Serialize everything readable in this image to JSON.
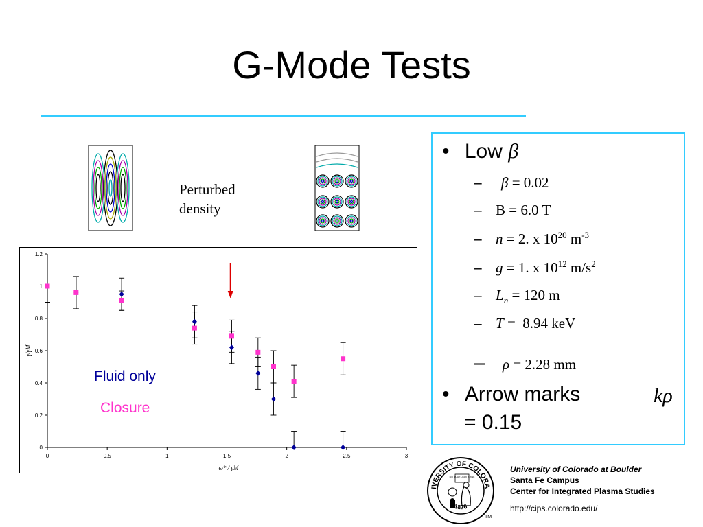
{
  "slide": {
    "title": "G-Mode Tests",
    "accent_color": "#33ccff"
  },
  "perturbed": {
    "line1": "Perturbed",
    "line2": "density"
  },
  "legend": {
    "fluid_only": "Fluid only",
    "fluid_color": "#000099",
    "closure": "Closure",
    "closure_color": "#ff33cc"
  },
  "bullets": {
    "low_beta": {
      "label": "Low",
      "symbol": "β"
    },
    "beta": {
      "symbol": "β",
      "value": "= 0.02"
    },
    "B": {
      "text": "B = 6.0 T"
    },
    "n": {
      "var": "n",
      "pre": " = 2. x 10",
      "exp": "20",
      "unit": " m",
      "unit_exp": "-3"
    },
    "g": {
      "var": "g",
      "pre": " = 1. x 10",
      "exp": "12",
      "unit": " m/s",
      "unit_exp": "2"
    },
    "Ln": {
      "var": "L",
      "sub": "n",
      "value": " = 120 m"
    },
    "T": {
      "var": "T",
      "value": " =  8.94 keV"
    },
    "rho": {
      "symbol": "ρ",
      "value": "= 2.28 mm"
    },
    "arrow": {
      "line1": "Arrow marks",
      "k": "k",
      "rho": "ρ",
      "line2": "= 0.15"
    }
  },
  "affiliation": {
    "line1": "University of Colorado at Boulder",
    "line2": "Santa Fe Campus",
    "line3": "Center for Integrated Plasma Studies",
    "url": "http://cips.colorado.edu/"
  },
  "seal": {
    "top_text": "UNIVERSITY OF COLORADO",
    "year": "1876",
    "motto": "LET YOUR LIGHT SHINE",
    "tm": "TM"
  },
  "chart_data": {
    "type": "scatter",
    "xlim": [
      0,
      3
    ],
    "ylim": [
      0,
      1.2
    ],
    "x_ticks": [
      "0",
      "0.5",
      "1",
      "1.5",
      "2",
      "2.5",
      "3"
    ],
    "y_ticks": [
      "0",
      "0.2",
      "0.4",
      "0.6",
      "0.8",
      "1",
      "1.2"
    ],
    "xlabel": "ω* / γM",
    "ylabel": "γ/γM",
    "grid": false,
    "arrow_x": 1.53,
    "series": [
      {
        "name": "Fluid only",
        "color": "#000099",
        "marker": "diamond",
        "x": [
          0,
          0.24,
          0.62,
          1.23,
          1.54,
          1.76,
          1.89,
          2.06,
          2.47
        ],
        "y": [
          1.0,
          0.96,
          0.95,
          0.78,
          0.62,
          0.46,
          0.3,
          0.0,
          0.0
        ],
        "err": [
          0.1,
          0.1,
          0.1,
          0.1,
          0.1,
          0.1,
          0.1,
          0.1,
          0.1
        ]
      },
      {
        "name": "Closure",
        "color": "#ff33cc",
        "marker": "square",
        "x": [
          0,
          0.24,
          0.62,
          1.23,
          1.54,
          1.76,
          1.89,
          2.06,
          2.47
        ],
        "y": [
          1.0,
          0.96,
          0.91,
          0.74,
          0.69,
          0.59,
          0.5,
          0.41,
          0.55
        ],
        "err": [
          0.1,
          0.1,
          0.06,
          0.1,
          0.1,
          0.09,
          0.1,
          0.1,
          0.1
        ]
      }
    ]
  }
}
